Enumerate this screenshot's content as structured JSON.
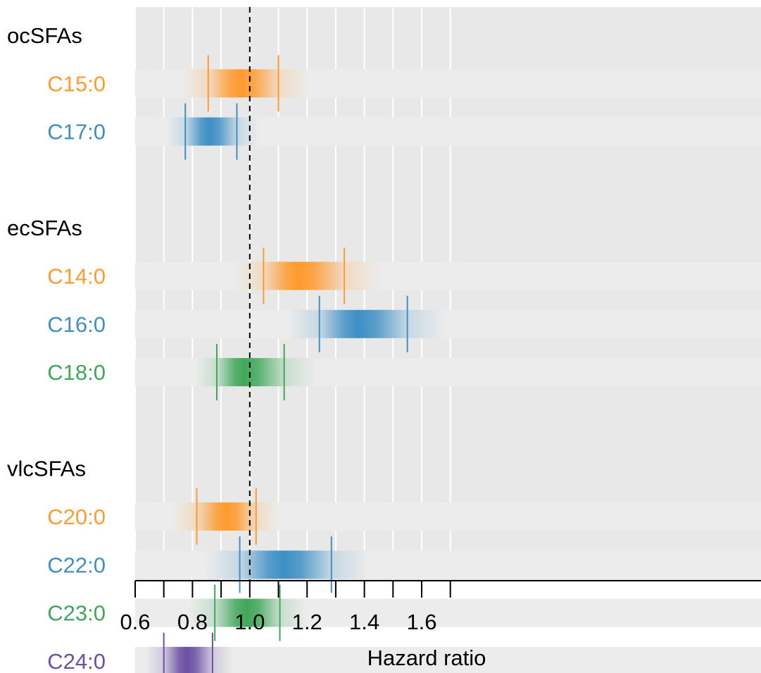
{
  "chart_data": {
    "type": "forest",
    "xlabel": "Hazard ratio",
    "xlim": [
      0.6,
      1.7
    ],
    "x_ticks": [
      0.6,
      0.8,
      1.0,
      1.2,
      1.4,
      1.6
    ],
    "x_tick_labels": [
      "0.6",
      "0.8",
      "1.0",
      "1.2",
      "1.4",
      "1.6"
    ],
    "x_minor_ticks": [
      0.7,
      0.9,
      1.1,
      1.3,
      1.5,
      1.7
    ],
    "reference_line": 1.0,
    "grid": true,
    "colors": {
      "orange": "#ff9a2e",
      "blue": "#3d8fc4",
      "green": "#3fa75a",
      "purple": "#6b4fa3",
      "panel": "#e8e8e8"
    },
    "rows": [
      {
        "kind": "group",
        "label": "ocSFAs"
      },
      {
        "kind": "item",
        "label": "C15:0",
        "color": "orange",
        "point": 0.97,
        "lower": 0.855,
        "upper": 1.1
      },
      {
        "kind": "item",
        "label": "C17:0",
        "color": "blue",
        "point": 0.86,
        "lower": 0.775,
        "upper": 0.955
      },
      {
        "kind": "spacer"
      },
      {
        "kind": "group",
        "label": "ecSFAs"
      },
      {
        "kind": "item",
        "label": "C14:0",
        "color": "orange",
        "point": 1.17,
        "lower": 1.048,
        "upper": 1.33
      },
      {
        "kind": "item",
        "label": "C16:0",
        "color": "blue",
        "point": 1.38,
        "lower": 1.243,
        "upper": 1.55
      },
      {
        "kind": "item",
        "label": "C18:0",
        "color": "green",
        "point": 0.98,
        "lower": 0.885,
        "upper": 1.12
      },
      {
        "kind": "spacer"
      },
      {
        "kind": "group",
        "label": "vlcSFAs"
      },
      {
        "kind": "item",
        "label": "C20:0",
        "color": "orange",
        "point": 0.92,
        "lower": 0.815,
        "upper": 1.022
      },
      {
        "kind": "item",
        "label": "C22:0",
        "color": "blue",
        "point": 1.12,
        "lower": 0.965,
        "upper": 1.285
      },
      {
        "kind": "item",
        "label": "C23:0",
        "color": "green",
        "point": 0.99,
        "lower": 0.878,
        "upper": 1.105
      },
      {
        "kind": "item",
        "label": "C24:0",
        "color": "purple",
        "point": 0.78,
        "lower": 0.7,
        "upper": 0.87
      }
    ]
  }
}
